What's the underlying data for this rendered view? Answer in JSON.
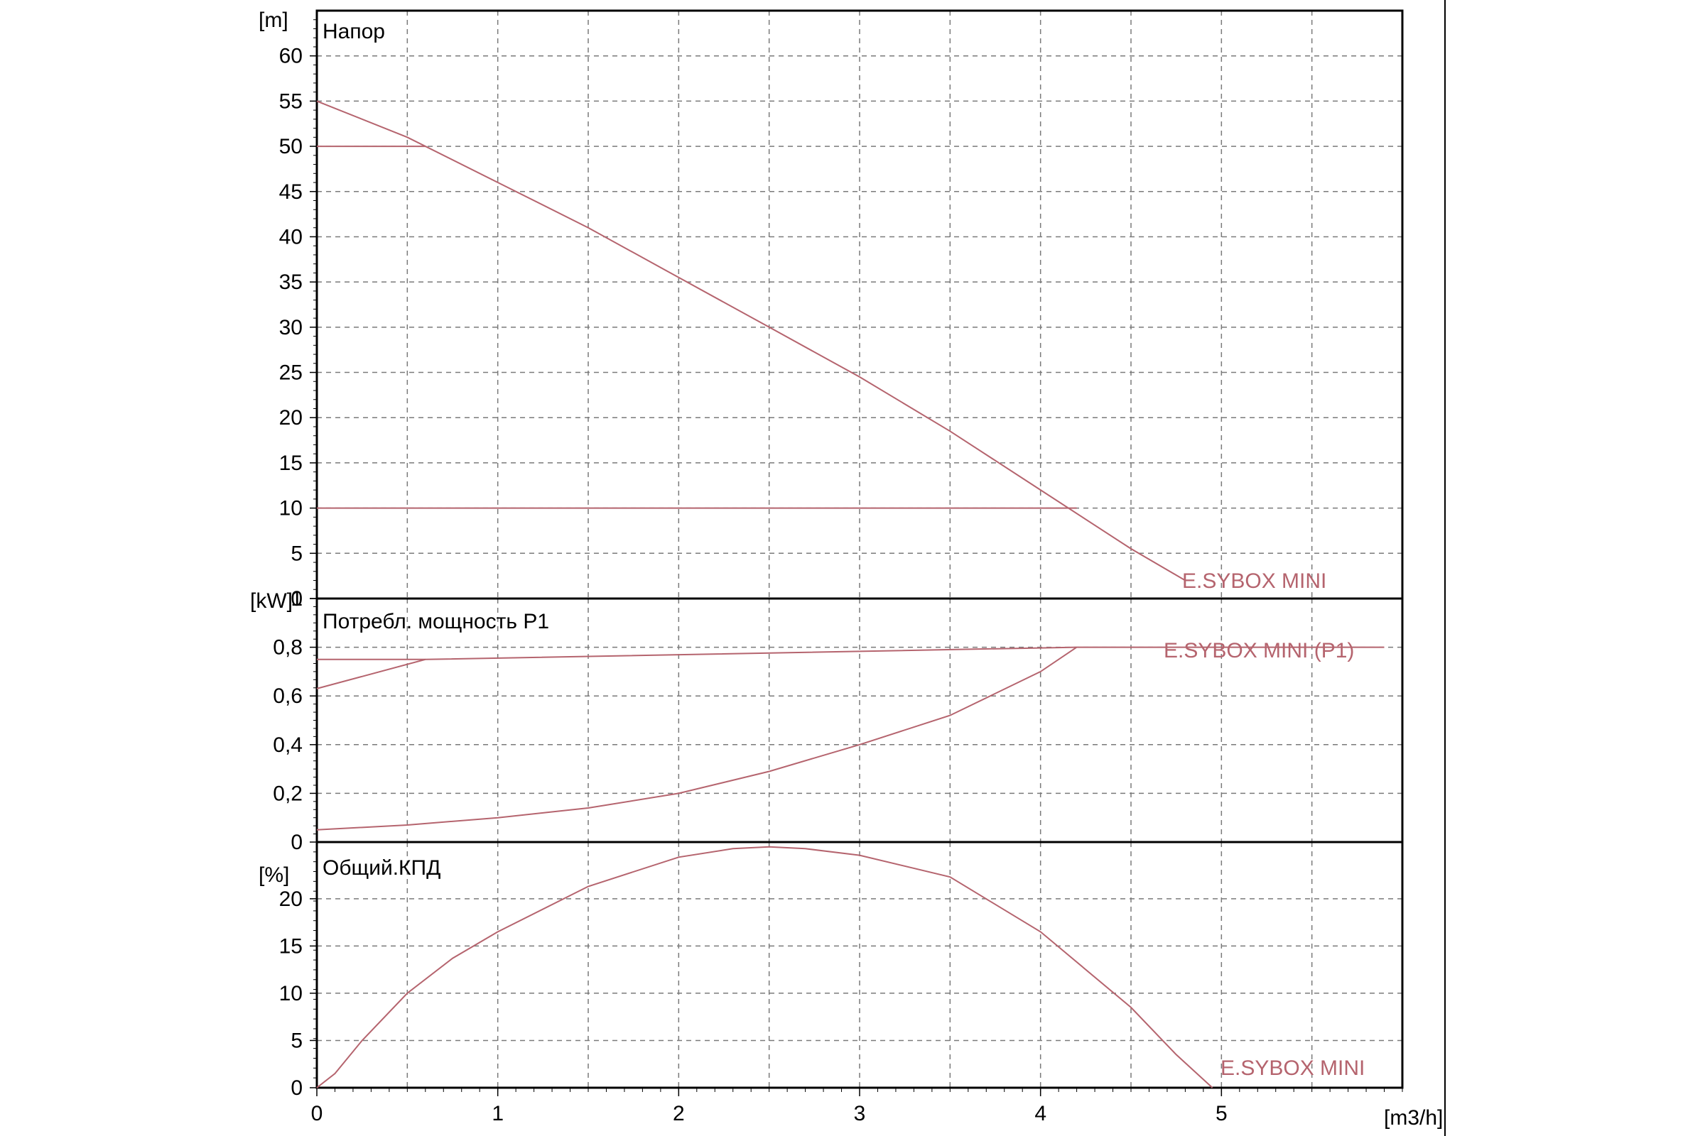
{
  "colors": {
    "curve": "#b5646e",
    "grid": "#7a7a7a",
    "frame": "#000000"
  },
  "chart_data": [
    {
      "type": "line",
      "title": "Напор",
      "unit_label": "[m]",
      "xlabel": "[m3/h]",
      "xlim": [
        0,
        6
      ],
      "ylim": [
        0,
        65
      ],
      "x_ticks": [
        0,
        1,
        2,
        3,
        4,
        5
      ],
      "y_ticks": [
        "0",
        "5",
        "10",
        "15",
        "20",
        "25",
        "30",
        "35",
        "40",
        "45",
        "50",
        "55",
        "60"
      ],
      "grid": true,
      "series": [
        {
          "name": "E.SYBOX MINI",
          "points": [
            [
              0,
              55
            ],
            [
              0.5,
              51
            ],
            [
              1,
              46
            ],
            [
              1.5,
              41
            ],
            [
              2,
              35.5
            ],
            [
              2.5,
              30
            ],
            [
              3,
              24.5
            ],
            [
              3.5,
              18.5
            ],
            [
              4,
              12
            ],
            [
              4.5,
              5.5
            ],
            [
              4.8,
              2
            ]
          ]
        }
      ],
      "reference_lines": [
        {
          "points": [
            [
              0,
              50
            ],
            [
              0.6,
              50
            ]
          ]
        },
        {
          "points": [
            [
              0,
              10
            ],
            [
              4.2,
              10
            ]
          ]
        }
      ]
    },
    {
      "type": "line",
      "title": "Потребл. мощность P1",
      "unit_label": "[kW]",
      "xlim": [
        0,
        6
      ],
      "ylim": [
        0,
        1
      ],
      "y_ticks": [
        "0",
        "0,2",
        "0,4",
        "0,6",
        "0,8",
        "1"
      ],
      "grid": true,
      "series": [
        {
          "name": "E.SYBOX MINI (P1)",
          "points": [
            [
              0,
              0.05
            ],
            [
              0.5,
              0.07
            ],
            [
              1,
              0.1
            ],
            [
              1.5,
              0.14
            ],
            [
              2,
              0.2
            ],
            [
              2.5,
              0.29
            ],
            [
              3,
              0.4
            ],
            [
              3.5,
              0.52
            ],
            [
              4,
              0.7
            ],
            [
              4.2,
              0.8
            ]
          ]
        }
      ],
      "reference_lines": [
        {
          "points": [
            [
              0,
              0.63
            ],
            [
              0.6,
              0.75
            ],
            [
              4.2,
              0.8
            ],
            [
              5.9,
              0.8
            ]
          ]
        },
        {
          "points": [
            [
              0,
              0.75
            ],
            [
              0.6,
              0.75
            ]
          ]
        }
      ]
    },
    {
      "type": "line",
      "title": "Общий.КПД",
      "unit_label": "[%]",
      "xlim": [
        0,
        6
      ],
      "ylim": [
        0,
        26
      ],
      "y_ticks": [
        "0",
        "5",
        "10",
        "15",
        "20"
      ],
      "grid": true,
      "series": [
        {
          "name": "E.SYBOX MINI",
          "points": [
            [
              0,
              0
            ],
            [
              0.1,
              1.5
            ],
            [
              0.25,
              5
            ],
            [
              0.5,
              10
            ],
            [
              0.75,
              13.7
            ],
            [
              1,
              16.5
            ],
            [
              1.5,
              21.3
            ],
            [
              2,
              24.4
            ],
            [
              2.3,
              25.3
            ],
            [
              2.5,
              25.5
            ],
            [
              2.7,
              25.3
            ],
            [
              3,
              24.6
            ],
            [
              3.5,
              22.3
            ],
            [
              4,
              16.5
            ],
            [
              4.5,
              8.5
            ],
            [
              4.75,
              3.5
            ],
            [
              4.95,
              0
            ]
          ]
        }
      ]
    }
  ]
}
